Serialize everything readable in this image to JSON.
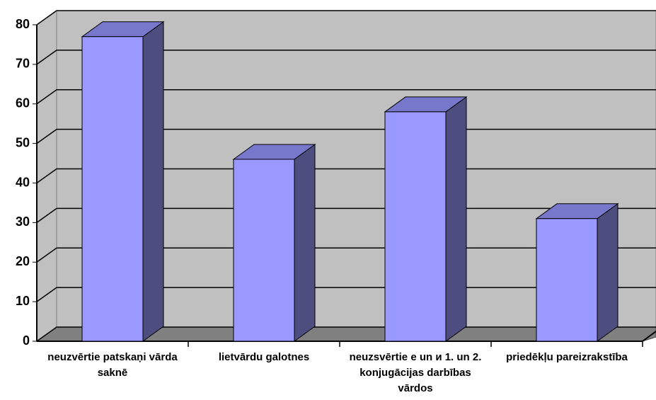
{
  "chart_data": {
    "type": "bar3d",
    "categories": [
      "neuzvērtie patskaņi vārda saknē",
      "lietvārdu galotnes",
      "neuzsvērtie e un и 1. un 2. konjugācijas darbības vārdos",
      "priedēkļu pareizrakstība"
    ],
    "values": [
      77,
      46,
      58,
      31
    ],
    "color": "#9999ff",
    "ylim": [
      0,
      80
    ],
    "yticks": [
      0,
      10,
      20,
      30,
      40,
      50,
      60,
      70,
      80
    ],
    "grid": true
  }
}
